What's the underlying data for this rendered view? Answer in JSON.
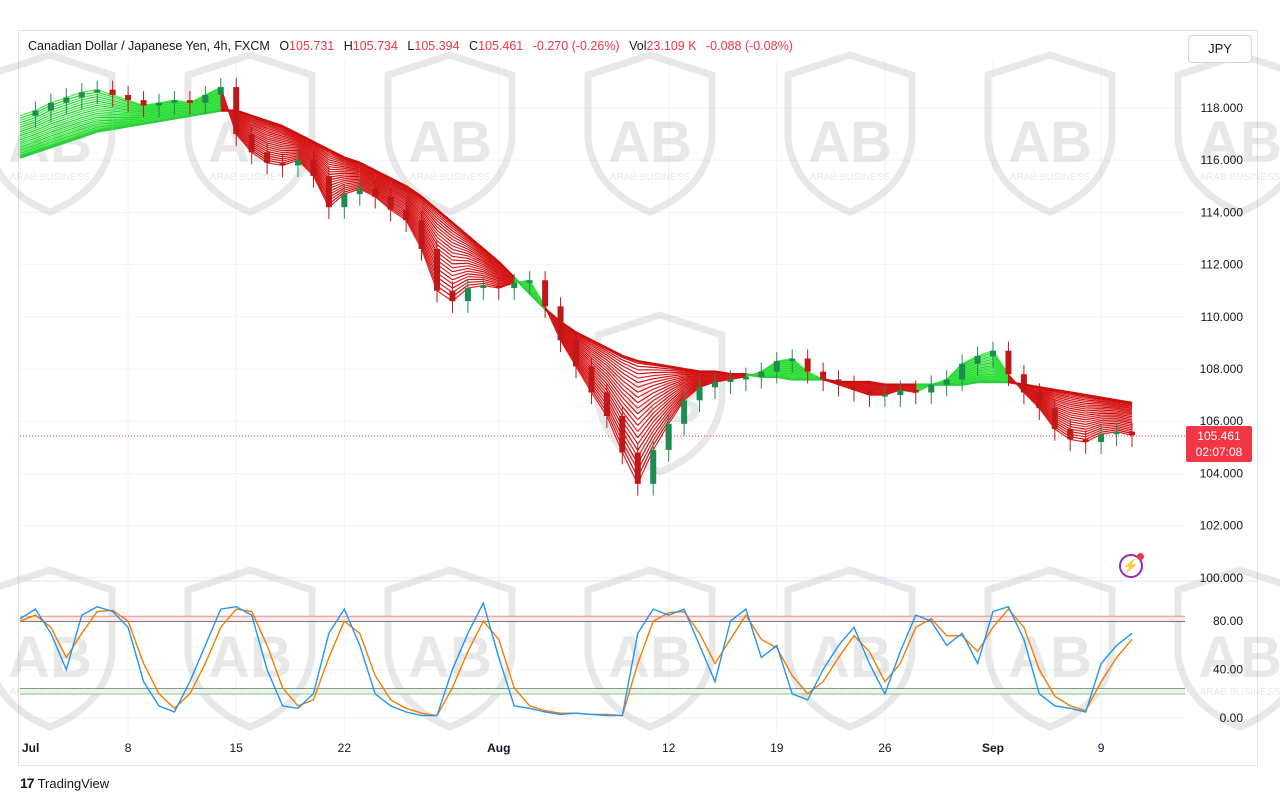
{
  "legend": {
    "symbol": "Canadian Dollar / Japanese Yen, 4h, FXCM",
    "o_label": "O",
    "o_value": "105.731",
    "h_label": "H",
    "h_value": "105.734",
    "l_label": "L",
    "l_value": "105.394",
    "c_label": "C",
    "c_value": "105.461",
    "change": "-0.270 (-0.26%)",
    "vol_label": "Vol",
    "vol_value": "23.109 K",
    "vol_change": "-0.088 (-0.08%)"
  },
  "currency_button": "JPY",
  "last_price": {
    "value": "105.461",
    "countdown": "02:07:08"
  },
  "footer": {
    "logo": "17",
    "brand": "TradingView"
  },
  "watermark": {
    "text": "ARAB BUSINESS"
  },
  "colors": {
    "up": "#26a69a",
    "down": "#e31b1b",
    "ribbon_up": "#33ee33",
    "ribbon_down": "#e01010",
    "k_line": "#2196f3",
    "d_line": "#f57c00",
    "accent": "#f23645"
  },
  "chart_data": [
    {
      "type": "line",
      "title": "Canadian Dollar / Japanese Yen, 4h, FXCM",
      "xlabel": "",
      "ylabel": "",
      "y_ticks": [
        "118.000",
        "116.000",
        "114.000",
        "112.000",
        "110.000",
        "108.000",
        "106.000",
        "104.000",
        "102.000",
        "100.000"
      ],
      "x_ticks": [
        "Jul",
        "8",
        "15",
        "22",
        "Aug",
        "12",
        "19",
        "26",
        "Sep",
        "9"
      ],
      "ylim": [
        100,
        119.5
      ],
      "grid": true,
      "x_index_ticks": [
        0,
        7,
        14,
        21,
        31,
        42,
        49,
        56,
        63,
        70
      ],
      "series": [
        {
          "role": "price",
          "values": [
            117.7,
            117.9,
            118.2,
            118.4,
            118.6,
            118.7,
            118.5,
            118.3,
            118.1,
            118.2,
            118.3,
            118.2,
            118.5,
            118.8,
            117.0,
            116.3,
            115.9,
            115.8,
            116.0,
            115.4,
            114.2,
            114.7,
            114.9,
            114.6,
            114.1,
            113.7,
            112.6,
            111.0,
            110.6,
            111.1,
            111.2,
            111.1,
            111.3,
            111.4,
            110.4,
            109.1,
            108.1,
            107.1,
            106.2,
            104.8,
            103.6,
            104.9,
            105.9,
            106.8,
            107.3,
            107.5,
            107.6,
            107.7,
            107.9,
            108.3,
            108.4,
            107.9,
            107.6,
            107.4,
            107.2,
            107.0,
            107.0,
            107.2,
            107.1,
            107.4,
            107.6,
            108.2,
            108.5,
            108.7,
            107.8,
            107.1,
            106.5,
            105.7,
            105.3,
            105.2,
            105.5,
            105.6,
            105.46
          ]
        },
        {
          "role": "ribbon_slow",
          "values": [
            116.1,
            116.3,
            116.5,
            116.7,
            116.9,
            117.1,
            117.2,
            117.3,
            117.4,
            117.5,
            117.6,
            117.7,
            117.8,
            117.9,
            117.9,
            117.7,
            117.5,
            117.3,
            117.0,
            116.7,
            116.4,
            116.1,
            115.9,
            115.6,
            115.3,
            115.0,
            114.6,
            114.1,
            113.6,
            113.1,
            112.6,
            112.1,
            111.5,
            110.9,
            110.3,
            109.8,
            109.4,
            109.1,
            108.8,
            108.5,
            108.3,
            108.2,
            108.1,
            108.0,
            107.9,
            107.9,
            107.8,
            107.8,
            107.7,
            107.7,
            107.6,
            107.6,
            107.6,
            107.5,
            107.5,
            107.5,
            107.4,
            107.4,
            107.4,
            107.4,
            107.4,
            107.4,
            107.5,
            107.5,
            107.5,
            107.4,
            107.3,
            107.2,
            107.1,
            107.0,
            106.9,
            106.8,
            106.7
          ]
        }
      ]
    },
    {
      "type": "line",
      "title": "Stochastic",
      "y_ticks": [
        "80.00",
        "40.00",
        "0.00"
      ],
      "ylim": [
        -5,
        105
      ],
      "hlines": [
        {
          "value": 84,
          "color": "#d32f2f"
        },
        {
          "value": 80,
          "color": "#131722"
        },
        {
          "value": 24,
          "color": "#131722"
        },
        {
          "value": 20,
          "color": "#2e7d32"
        }
      ],
      "series": [
        {
          "name": "%K",
          "values": [
            82,
            90,
            70,
            40,
            85,
            92,
            88,
            75,
            30,
            10,
            5,
            30,
            60,
            90,
            92,
            85,
            40,
            10,
            8,
            20,
            70,
            90,
            60,
            20,
            10,
            5,
            2,
            2,
            40,
            70,
            95,
            50,
            10,
            8,
            5,
            3,
            4,
            3,
            2,
            2,
            70,
            90,
            85,
            90,
            60,
            30,
            80,
            90,
            50,
            60,
            20,
            15,
            40,
            60,
            75,
            45,
            20,
            55,
            85,
            80,
            60,
            70,
            45,
            88,
            92,
            65,
            20,
            10,
            8,
            5,
            45,
            60,
            70
          ]
        },
        {
          "name": "%D",
          "values": [
            80,
            85,
            75,
            50,
            70,
            88,
            89,
            80,
            45,
            20,
            8,
            20,
            45,
            75,
            90,
            88,
            60,
            25,
            10,
            15,
            50,
            80,
            70,
            35,
            15,
            8,
            4,
            2,
            25,
            55,
            80,
            65,
            25,
            10,
            6,
            4,
            4,
            3,
            3,
            2,
            45,
            80,
            87,
            88,
            70,
            45,
            65,
            85,
            65,
            58,
            35,
            20,
            30,
            50,
            68,
            55,
            30,
            45,
            75,
            82,
            68,
            68,
            55,
            75,
            90,
            75,
            40,
            18,
            10,
            6,
            30,
            50,
            65
          ]
        }
      ]
    }
  ]
}
